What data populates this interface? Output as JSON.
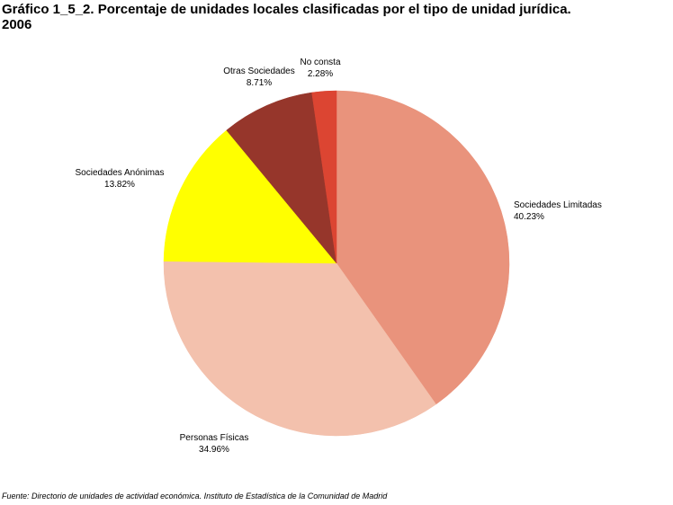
{
  "chart_data": {
    "type": "pie",
    "title_line1": "Gráfico 1_5_2. Porcentaje de unidades locales clasificadas por el tipo de unidad jurídica.",
    "title_line2": "2006",
    "unit": "%",
    "slices": [
      {
        "label": "Sociedades Limitadas",
        "value": 40.23,
        "value_label": "40.23%",
        "color": "#e9937c"
      },
      {
        "label": "Personas Físicas",
        "value": 34.96,
        "value_label": "34.96%",
        "color": "#f3c1ad"
      },
      {
        "label": "Sociedades Anónimas",
        "value": 13.82,
        "value_label": "13.82%",
        "color": "#ffff00"
      },
      {
        "label": "Otras Sociedades",
        "value": 8.71,
        "value_label": "8.71%",
        "color": "#96362b"
      },
      {
        "label": "No consta",
        "value": 2.28,
        "value_label": "2.28%",
        "color": "#dc4532"
      }
    ],
    "legend": "none",
    "start_position": "top",
    "direction": "clockwise"
  },
  "source_note": "Fuente: Directorio de unidades de actividad económica. Instituto de Estadística de la Comunidad de Madrid"
}
